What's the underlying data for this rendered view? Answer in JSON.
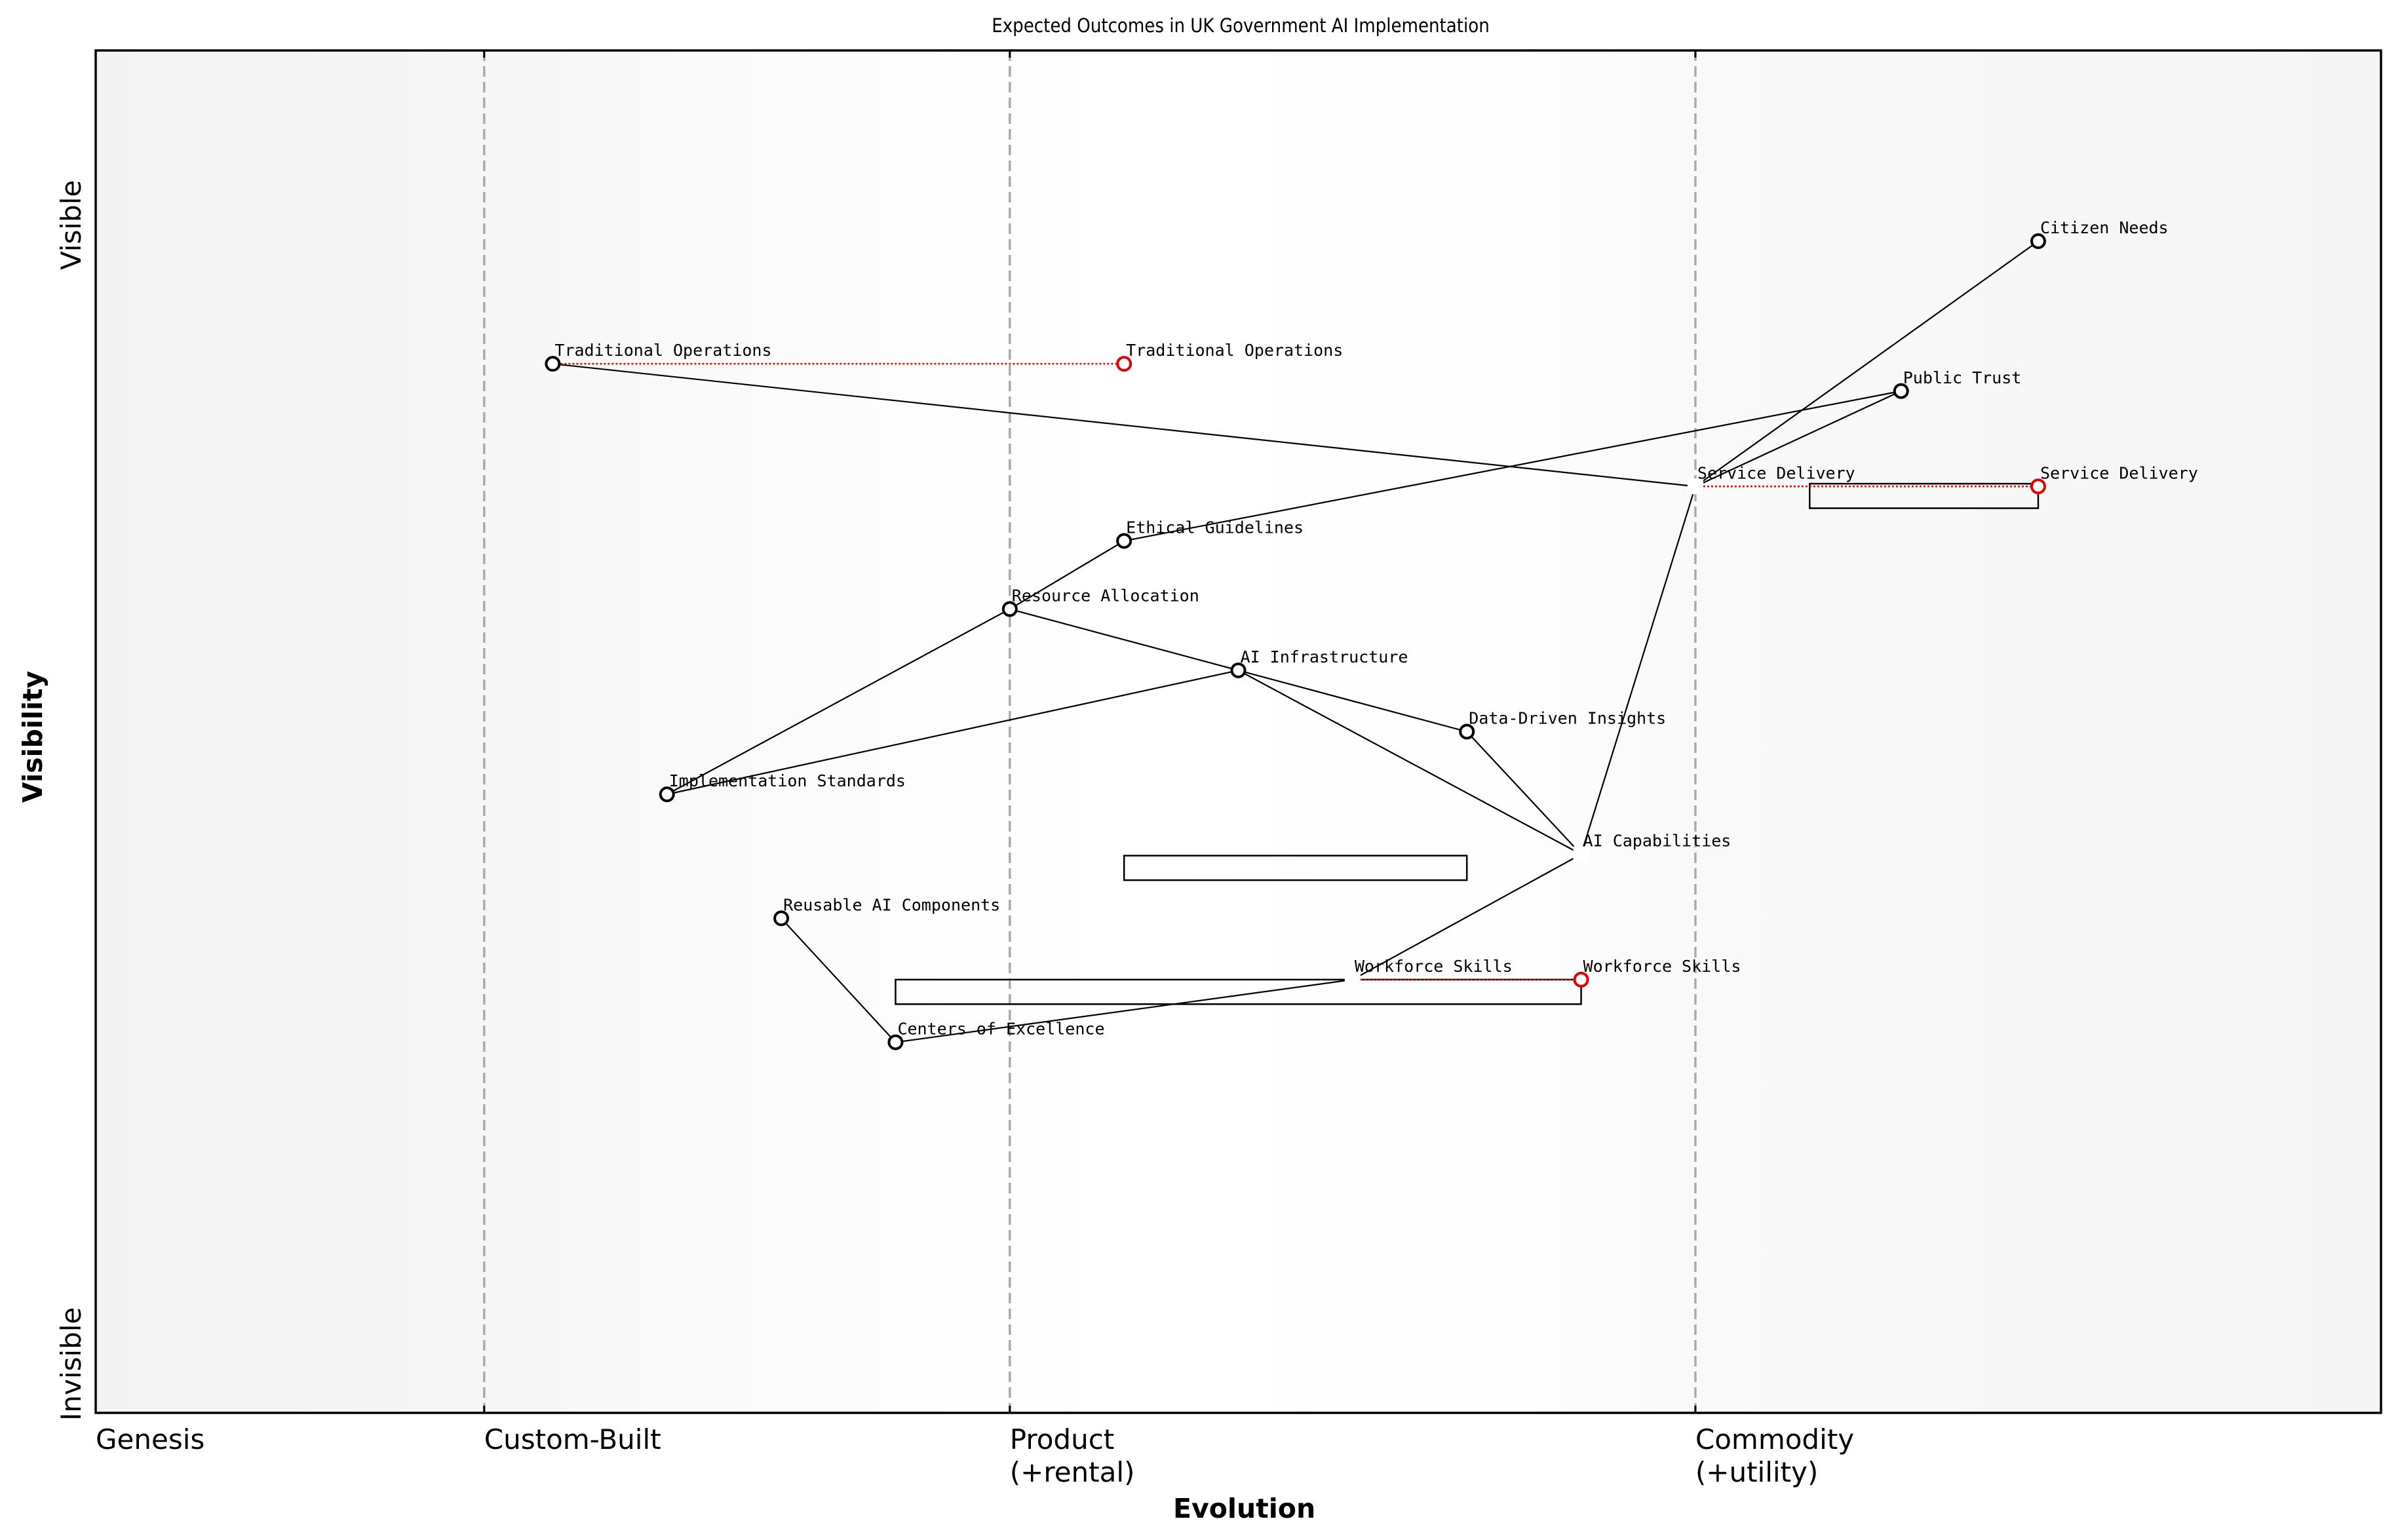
{
  "title": "Expected Outcomes in UK Government AI Implementation",
  "axes": {
    "x_label": "Evolution",
    "y_label": "Visibility",
    "y_top_label": "Visible",
    "y_bottom_label": "Invisible",
    "stages": [
      {
        "label": "Genesis",
        "x": 0.0
      },
      {
        "label": "Custom-Built",
        "x": 0.17
      },
      {
        "label": "Product\n(+rental)",
        "x": 0.4
      },
      {
        "label": "Commodity\n(+utility)",
        "x": 0.7
      }
    ]
  },
  "colors": {
    "node": "#000000",
    "evolved_node": "#e00000",
    "evolution_line": "#e00000",
    "divider": "#aaaaaa",
    "edge": "#000000"
  },
  "chart_data": {
    "type": "scatter",
    "title": "Expected Outcomes in UK Government AI Implementation",
    "xlabel": "Evolution",
    "ylabel": "Visibility",
    "xlim": [
      0,
      1
    ],
    "ylim": [
      0,
      1
    ],
    "stage_boundaries": [
      0.17,
      0.4,
      0.7
    ],
    "components": [
      {
        "name": "Citizen Needs",
        "evolution": 0.85,
        "visibility": 0.86,
        "hidden": false
      },
      {
        "name": "Public Trust",
        "evolution": 0.79,
        "visibility": 0.75,
        "hidden": false
      },
      {
        "name": "Service Delivery",
        "evolution": 0.7,
        "visibility": 0.68,
        "hidden": true
      },
      {
        "name": "Traditional Operations",
        "evolution": 0.2,
        "visibility": 0.77,
        "hidden": false
      },
      {
        "name": "Ethical Guidelines",
        "evolution": 0.45,
        "visibility": 0.64,
        "hidden": false
      },
      {
        "name": "Resource Allocation",
        "evolution": 0.4,
        "visibility": 0.59,
        "hidden": false
      },
      {
        "name": "AI Infrastructure",
        "evolution": 0.5,
        "visibility": 0.545,
        "hidden": false
      },
      {
        "name": "Data-Driven Insights",
        "evolution": 0.6,
        "visibility": 0.5,
        "hidden": false
      },
      {
        "name": "Implementation Standards",
        "evolution": 0.25,
        "visibility": 0.454,
        "hidden": false
      },
      {
        "name": "AI Capabilities",
        "evolution": 0.65,
        "visibility": 0.41,
        "hidden": true
      },
      {
        "name": "Reusable AI Components",
        "evolution": 0.3,
        "visibility": 0.363,
        "hidden": false
      },
      {
        "name": "Workforce Skills",
        "evolution": 0.55,
        "visibility": 0.318,
        "hidden": true
      },
      {
        "name": "Centers of Excellence",
        "evolution": 0.35,
        "visibility": 0.272,
        "hidden": false
      }
    ],
    "evolutions": [
      {
        "name": "Traditional Operations",
        "from": 0.2,
        "to": 0.45,
        "visibility": 0.77
      },
      {
        "name": "Service Delivery",
        "from": 0.7,
        "to": 0.85,
        "visibility": 0.68
      },
      {
        "name": "Workforce Skills",
        "from": 0.55,
        "to": 0.65,
        "visibility": 0.318
      }
    ],
    "links": [
      [
        "Citizen Needs",
        "Service Delivery"
      ],
      [
        "Public Trust",
        "Service Delivery"
      ],
      [
        "Public Trust",
        "Ethical Guidelines"
      ],
      [
        "Ethical Guidelines",
        "Resource Allocation"
      ],
      [
        "Resource Allocation",
        "Implementation Standards"
      ],
      [
        "Resource Allocation",
        "AI Infrastructure"
      ],
      [
        "Implementation Standards",
        "AI Infrastructure"
      ],
      [
        "AI Infrastructure",
        "Data-Driven Insights"
      ],
      [
        "AI Infrastructure",
        "AI Capabilities"
      ],
      [
        "Data-Driven Insights",
        "AI Capabilities"
      ],
      [
        "Service Delivery",
        "AI Capabilities"
      ],
      [
        "Service Delivery",
        "Traditional Operations"
      ],
      [
        "AI Capabilities",
        "Workforce Skills"
      ],
      [
        "Workforce Skills",
        "Centers of Excellence"
      ],
      [
        "Reusable AI Components",
        "Centers of Excellence"
      ]
    ],
    "pipelines": [
      {
        "x_start": 0.45,
        "x_end": 0.6,
        "visibility_top": 0.409,
        "visibility_bottom": 0.391
      },
      {
        "x_start": 0.35,
        "x_end": 0.65,
        "visibility_top": 0.318,
        "visibility_bottom": 0.3
      },
      {
        "x_start": 0.75,
        "x_end": 0.85,
        "visibility_top": 0.682,
        "visibility_bottom": 0.664
      }
    ]
  }
}
